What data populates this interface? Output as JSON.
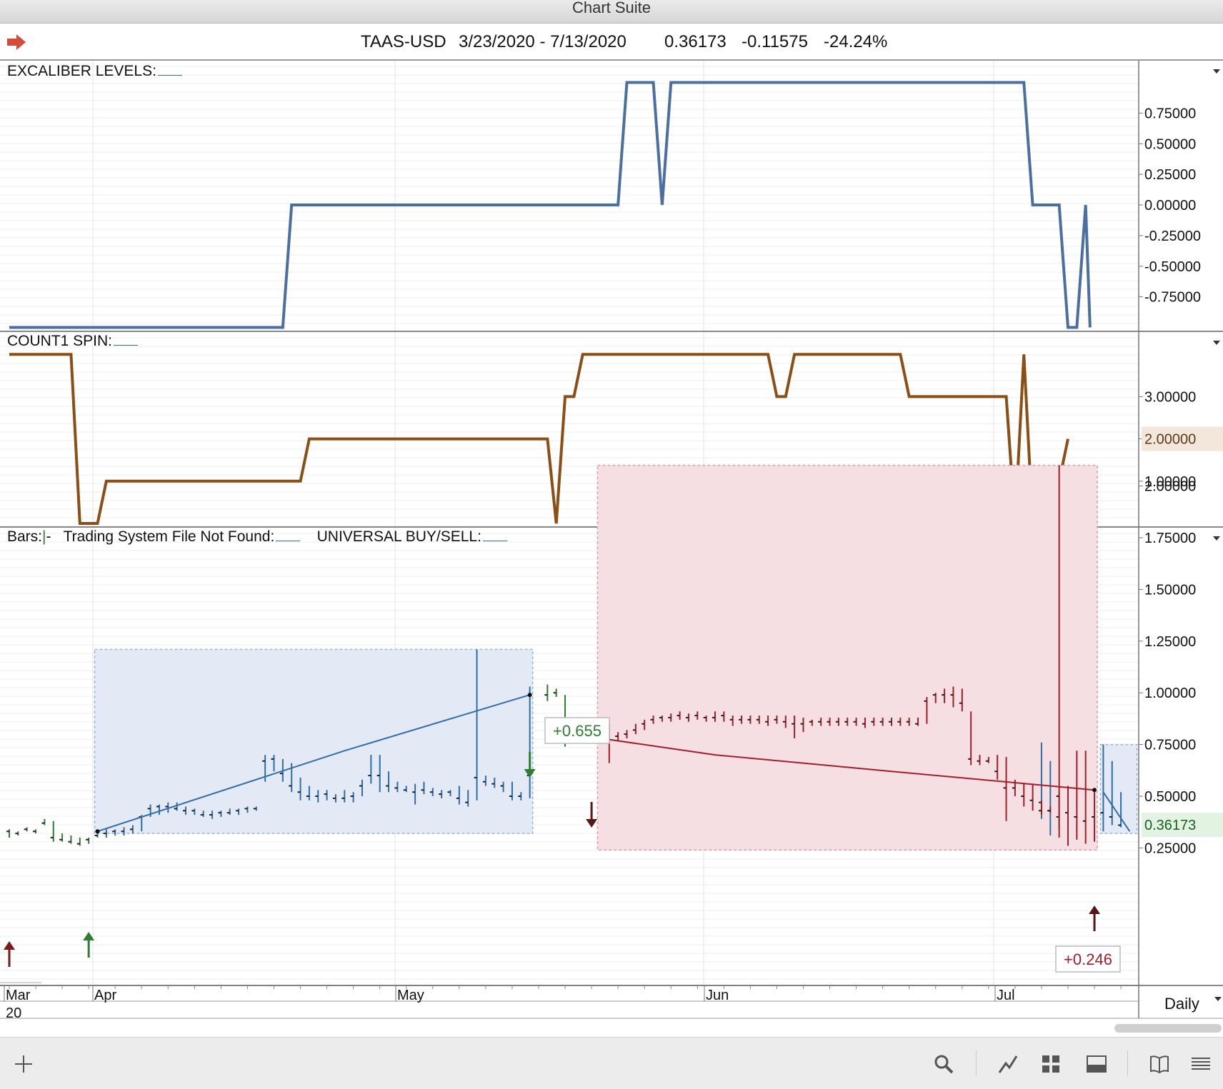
{
  "window": {
    "title": "Chart Suite"
  },
  "header": {
    "symbol": "TAAS-USD",
    "date_range": "3/23/2020 - 7/13/2020",
    "last": "0.36173",
    "change": "-0.11575",
    "change_pct": "-24.24%",
    "nav_icon": "red-arrow-right-icon"
  },
  "colors": {
    "excaliber": "#4a6fa0",
    "count1": "#8b4e14",
    "blue_bar": "#2f6da8",
    "red_bar": "#a11e2a",
    "green_bar": "#2e7d32",
    "blue_box": "#e4eaf5",
    "red_box": "#f6dfe2"
  },
  "bottom": {
    "timeframe": "Daily",
    "add_icon": "plus-icon",
    "toolbar_icons": [
      "search-icon",
      "draw-line-icon",
      "grid-layout-icon",
      "panel-icon",
      "book-icon",
      "menu-icon"
    ]
  },
  "chart_data": [
    {
      "type": "line",
      "title": "EXCALIBER LEVELS:",
      "ylim": [
        -1,
        1
      ],
      "yticks": [
        "0.75000",
        "0.50000",
        "0.25000",
        "0.00000",
        "-0.25000",
        "-0.50000",
        "-0.75000"
      ],
      "series": [
        {
          "x": [
            0,
            31,
            32,
            69,
            70,
            73,
            74,
            75,
            76,
            115,
            116,
            119,
            120,
            121,
            122,
            122.5
          ],
          "values": [
            -1,
            -1,
            0,
            0,
            1,
            1,
            0,
            1,
            1,
            1,
            0,
            0,
            -1,
            -1,
            0,
            -1
          ]
        }
      ]
    },
    {
      "type": "line",
      "title": "COUNT1 SPIN:",
      "ylim": [
        0,
        4
      ],
      "yticks": [
        "3.00000",
        "2.00000",
        "1.00000"
      ],
      "current_value_label": "2.00000",
      "series": [
        {
          "x": [
            0,
            7,
            8,
            10,
            11,
            33,
            34,
            61,
            62,
            63,
            64,
            65,
            86,
            87,
            88,
            89,
            101,
            102,
            113,
            114,
            115,
            116,
            117,
            118,
            120
          ],
          "values": [
            4,
            4,
            0,
            0,
            1,
            1,
            2,
            2,
            0,
            3,
            3,
            4,
            4,
            3,
            3,
            4,
            4,
            3,
            3,
            0,
            4,
            0,
            0,
            0,
            2
          ]
        }
      ]
    },
    {
      "type": "bar",
      "title": "Bars:",
      "legend": [
        "Bars:",
        "Trading System File Not Found:",
        "UNIVERSAL BUY/SELL:"
      ],
      "ylim": [
        0.05,
        2.15
      ],
      "yticks": [
        "2.00000",
        "1.75000",
        "1.50000",
        "1.25000",
        "1.00000",
        "0.75000",
        "0.50000",
        "0.25000"
      ],
      "last_label": "0.36173",
      "xticks": [
        "Mar\n20",
        "Apr",
        "May",
        "Jun",
        "Jul"
      ],
      "trade_labels": [
        "+0.655",
        "+0.246"
      ],
      "green_bars": [
        [
          0,
          0.3,
          0.34,
          0.33
        ],
        [
          1,
          0.31,
          0.33,
          0.32
        ],
        [
          2,
          0.33,
          0.35,
          0.34
        ],
        [
          3,
          0.32,
          0.34,
          0.33
        ],
        [
          4,
          0.36,
          0.39,
          0.37
        ],
        [
          5,
          0.28,
          0.38,
          0.3
        ],
        [
          6,
          0.28,
          0.32,
          0.29
        ],
        [
          7,
          0.27,
          0.31,
          0.28
        ],
        [
          8,
          0.26,
          0.3,
          0.27
        ],
        [
          9,
          0.27,
          0.3,
          0.29
        ],
        [
          61,
          0.96,
          1.04,
          0.99
        ],
        [
          62,
          0.98,
          1.02,
          1.0
        ],
        [
          63,
          0.74,
          0.99,
          0.76
        ],
        [
          64,
          0.76,
          0.78,
          0.77
        ],
        [
          65,
          0.77,
          0.79,
          0.78
        ],
        [
          66,
          0.77,
          0.79,
          0.78
        ],
        [
          67,
          0.77,
          0.79,
          0.78
        ]
      ],
      "blue_bars": [
        [
          10,
          0.3,
          0.33,
          0.31
        ],
        [
          11,
          0.3,
          0.34,
          0.32
        ],
        [
          12,
          0.31,
          0.34,
          0.33
        ],
        [
          13,
          0.31,
          0.35,
          0.33
        ],
        [
          14,
          0.32,
          0.36,
          0.34
        ],
        [
          15,
          0.33,
          0.41,
          0.4
        ],
        [
          16,
          0.4,
          0.46,
          0.44
        ],
        [
          17,
          0.41,
          0.46,
          0.45
        ],
        [
          18,
          0.42,
          0.47,
          0.45
        ],
        [
          19,
          0.43,
          0.47,
          0.44
        ],
        [
          20,
          0.41,
          0.45,
          0.43
        ],
        [
          21,
          0.41,
          0.44,
          0.43
        ],
        [
          22,
          0.4,
          0.43,
          0.41
        ],
        [
          23,
          0.39,
          0.43,
          0.41
        ],
        [
          24,
          0.4,
          0.43,
          0.42
        ],
        [
          25,
          0.41,
          0.44,
          0.42
        ],
        [
          26,
          0.41,
          0.44,
          0.43
        ],
        [
          27,
          0.42,
          0.45,
          0.44
        ],
        [
          28,
          0.43,
          0.45,
          0.44
        ],
        [
          29,
          0.57,
          0.7,
          0.67
        ],
        [
          30,
          0.62,
          0.7,
          0.68
        ],
        [
          31,
          0.57,
          0.68,
          0.61
        ],
        [
          32,
          0.52,
          0.66,
          0.55
        ],
        [
          33,
          0.48,
          0.59,
          0.52
        ],
        [
          34,
          0.48,
          0.55,
          0.5
        ],
        [
          35,
          0.47,
          0.53,
          0.5
        ],
        [
          36,
          0.48,
          0.53,
          0.51
        ],
        [
          37,
          0.47,
          0.51,
          0.49
        ],
        [
          38,
          0.47,
          0.53,
          0.49
        ],
        [
          39,
          0.47,
          0.52,
          0.5
        ],
        [
          40,
          0.5,
          0.58,
          0.55
        ],
        [
          41,
          0.56,
          0.7,
          0.6
        ],
        [
          42,
          0.52,
          0.7,
          0.6
        ],
        [
          43,
          0.52,
          0.62,
          0.55
        ],
        [
          44,
          0.52,
          0.57,
          0.54
        ],
        [
          45,
          0.52,
          0.55,
          0.53
        ],
        [
          46,
          0.46,
          0.56,
          0.52
        ],
        [
          47,
          0.51,
          0.57,
          0.53
        ],
        [
          48,
          0.5,
          0.54,
          0.52
        ],
        [
          49,
          0.49,
          0.53,
          0.51
        ],
        [
          50,
          0.5,
          0.53,
          0.52
        ],
        [
          51,
          0.46,
          0.55,
          0.49
        ],
        [
          52,
          0.45,
          0.53,
          0.47
        ],
        [
          53,
          0.48,
          1.21,
          0.59
        ],
        [
          54,
          0.55,
          0.6,
          0.57
        ],
        [
          55,
          0.54,
          0.59,
          0.56
        ],
        [
          56,
          0.52,
          0.57,
          0.55
        ],
        [
          57,
          0.48,
          0.57,
          0.5
        ],
        [
          58,
          0.48,
          0.52,
          0.5
        ],
        [
          59,
          0.49,
          1.03,
          0.6
        ],
        [
          117,
          0.39,
          0.76,
          0.47
        ],
        [
          118,
          0.31,
          0.67,
          0.43
        ],
        [
          119,
          0.34,
          0.52,
          0.4
        ]
      ],
      "red_bars": [
        [
          68,
          0.66,
          0.85,
          0.77
        ],
        [
          69,
          0.77,
          0.81,
          0.79
        ],
        [
          70,
          0.78,
          0.82,
          0.8
        ],
        [
          71,
          0.8,
          0.85,
          0.82
        ],
        [
          72,
          0.82,
          0.87,
          0.85
        ],
        [
          73,
          0.85,
          0.89,
          0.87
        ],
        [
          74,
          0.86,
          0.89,
          0.88
        ],
        [
          75,
          0.86,
          0.9,
          0.88
        ],
        [
          76,
          0.87,
          0.91,
          0.89
        ],
        [
          77,
          0.86,
          0.9,
          0.88
        ],
        [
          78,
          0.87,
          0.91,
          0.89
        ],
        [
          79,
          0.86,
          0.89,
          0.88
        ],
        [
          80,
          0.86,
          0.91,
          0.88
        ],
        [
          81,
          0.86,
          0.91,
          0.89
        ],
        [
          82,
          0.84,
          0.89,
          0.87
        ],
        [
          83,
          0.85,
          0.89,
          0.87
        ],
        [
          84,
          0.85,
          0.89,
          0.87
        ],
        [
          85,
          0.85,
          0.89,
          0.87
        ],
        [
          86,
          0.84,
          0.89,
          0.86
        ],
        [
          87,
          0.85,
          0.89,
          0.87
        ],
        [
          88,
          0.83,
          0.89,
          0.86
        ],
        [
          89,
          0.78,
          0.89,
          0.85
        ],
        [
          90,
          0.81,
          0.88,
          0.85
        ],
        [
          91,
          0.84,
          0.87,
          0.86
        ],
        [
          92,
          0.84,
          0.88,
          0.86
        ],
        [
          93,
          0.84,
          0.88,
          0.86
        ],
        [
          94,
          0.84,
          0.88,
          0.86
        ],
        [
          95,
          0.84,
          0.88,
          0.86
        ],
        [
          96,
          0.84,
          0.88,
          0.86
        ],
        [
          97,
          0.83,
          0.88,
          0.85
        ],
        [
          98,
          0.84,
          0.88,
          0.86
        ],
        [
          99,
          0.84,
          0.88,
          0.86
        ],
        [
          100,
          0.84,
          0.88,
          0.86
        ],
        [
          101,
          0.84,
          0.88,
          0.86
        ],
        [
          102,
          0.84,
          0.88,
          0.86
        ],
        [
          103,
          0.84,
          0.88,
          0.85
        ],
        [
          104,
          0.85,
          0.98,
          0.96
        ],
        [
          105,
          0.95,
          1.0,
          0.99
        ],
        [
          106,
          0.95,
          1.02,
          0.99
        ],
        [
          107,
          0.93,
          1.03,
          0.99
        ],
        [
          108,
          0.91,
          1.02,
          0.95
        ],
        [
          109,
          0.65,
          0.91,
          0.68
        ],
        [
          110,
          0.65,
          0.7,
          0.67
        ],
        [
          111,
          0.66,
          0.69,
          0.67
        ],
        [
          112,
          0.58,
          0.7,
          0.62
        ],
        [
          113,
          0.38,
          0.69,
          0.54
        ],
        [
          114,
          0.5,
          0.58,
          0.54
        ],
        [
          115,
          0.45,
          0.56,
          0.5
        ],
        [
          116,
          0.43,
          0.56,
          0.48
        ],
        [
          117,
          0.41,
          0.48,
          0.43
        ],
        [
          118,
          0.42,
          0.45,
          0.43
        ],
        [
          119,
          0.3,
          2.1,
          0.5
        ],
        [
          120,
          0.26,
          0.55,
          0.42
        ],
        [
          121,
          0.29,
          0.72,
          0.4
        ],
        [
          122,
          0.27,
          0.72,
          0.38
        ],
        [
          123,
          0.28,
          0.52,
          0.4
        ]
      ],
      "blue_trend": {
        "x": [
          10,
          38,
          59
        ],
        "values": [
          0.33,
          0.72,
          0.99
        ]
      },
      "red_trend": {
        "x": [
          67,
          80,
          100,
          123
        ],
        "values": [
          0.78,
          0.7,
          0.62,
          0.53
        ]
      },
      "blue_box": {
        "x": [
          10,
          59
        ],
        "y": [
          0.32,
          1.21
        ]
      },
      "red_box": {
        "x": [
          67,
          123
        ],
        "y": [
          0.24,
          2.1
        ]
      },
      "small_box": {
        "x": [
          124,
          127.5
        ],
        "y": [
          0.32,
          0.75
        ]
      },
      "last_blue_bars": [
        [
          124,
          0.33,
          0.75,
          0.42
        ],
        [
          125,
          0.36,
          0.67,
          0.4
        ],
        [
          126,
          0.35,
          0.52,
          0.36
        ]
      ]
    }
  ]
}
